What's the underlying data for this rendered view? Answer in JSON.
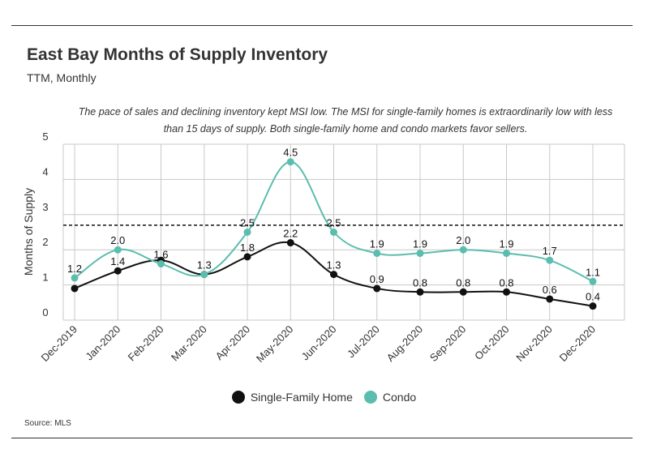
{
  "colors": {
    "single_family": "#111111",
    "condo": "#5bbdae",
    "reference": "#111111",
    "grid": "#c8c8c8"
  },
  "chart_data": {
    "type": "line",
    "title": "East Bay Months of Supply Inventory",
    "subtitle": "TTM, Monthly",
    "annotation": "The pace of sales and declining inventory kept MSI low. The MSI for single-family homes is extraordinarily low with less than 15 days of supply. Both single-family home and condo markets favor sellers.",
    "ylabel": "Months of Supply",
    "xlabel": "",
    "ylim": [
      0,
      5
    ],
    "yticks": [
      "0",
      "1",
      "2",
      "3",
      "4",
      "5"
    ],
    "grid": true,
    "reference_line": 2.7,
    "legend_position": "bottom",
    "source": "Source:  MLS",
    "categories": [
      "Dec-2019",
      "Jan-2020",
      "Feb-2020",
      "Mar-2020",
      "Apr-2020",
      "May-2020",
      "Jun-2020",
      "Jul-2020",
      "Aug-2020",
      "Sep-2020",
      "Oct-2020",
      "Nov-2020",
      "Dec-2020"
    ],
    "series": [
      {
        "name": "Single-Family Home",
        "color_key": "single_family",
        "values": [
          0.9,
          1.4,
          1.7,
          1.3,
          1.8,
          2.2,
          1.3,
          0.9,
          0.8,
          0.8,
          0.8,
          0.6,
          0.4
        ],
        "labels": [
          "",
          "1.4",
          "",
          "",
          "1.8",
          "2.2",
          "1.3",
          "0.9",
          "0.8",
          "0.8",
          "0.8",
          "0.6",
          "0.4"
        ]
      },
      {
        "name": "Condo",
        "color_key": "condo",
        "values": [
          1.2,
          2.0,
          1.6,
          1.3,
          2.5,
          4.5,
          2.5,
          1.9,
          1.9,
          2.0,
          1.9,
          1.7,
          1.1
        ],
        "labels": [
          "1.2",
          "2.0",
          "1.6",
          "1.3",
          "2.5",
          "4.5",
          "2.5",
          "1.9",
          "1.9",
          "2.0",
          "1.9",
          "1.7",
          "1.1"
        ]
      }
    ]
  }
}
